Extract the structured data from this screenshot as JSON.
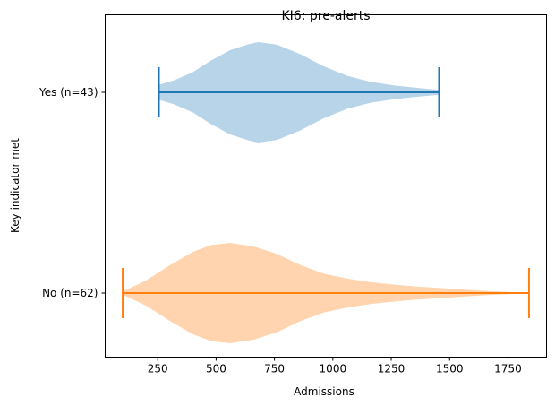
{
  "chart_data": {
    "type": "violin",
    "orientation": "horizontal",
    "title": "KI6: pre-alerts",
    "xlabel": "Admissions",
    "ylabel": "Key indicator met",
    "xlim": [
      25,
      1915
    ],
    "xticks": [
      250,
      500,
      750,
      1000,
      1250,
      1500,
      1750
    ],
    "categories": [
      "No (n=62)",
      "Yes (n=43)"
    ],
    "grid": false,
    "series": [
      {
        "category": "Yes (n=43)",
        "min": 255,
        "max": 1455,
        "fill_color": "#b8d4e8",
        "line_color": "#1f77b4",
        "density_profile": [
          [
            255,
            0.15
          ],
          [
            320,
            0.24
          ],
          [
            400,
            0.4
          ],
          [
            480,
            0.64
          ],
          [
            560,
            0.84
          ],
          [
            640,
            0.96
          ],
          [
            680,
            1.0
          ],
          [
            760,
            0.95
          ],
          [
            860,
            0.76
          ],
          [
            960,
            0.52
          ],
          [
            1060,
            0.33
          ],
          [
            1160,
            0.21
          ],
          [
            1260,
            0.14
          ],
          [
            1360,
            0.09
          ],
          [
            1455,
            0.05
          ]
        ]
      },
      {
        "category": "No (n=62)",
        "min": 100,
        "max": 1840,
        "fill_color": "#ffd4ae",
        "line_color": "#ff7f0e",
        "density_profile": [
          [
            100,
            0.03
          ],
          [
            200,
            0.25
          ],
          [
            300,
            0.55
          ],
          [
            400,
            0.82
          ],
          [
            480,
            0.96
          ],
          [
            560,
            1.0
          ],
          [
            660,
            0.93
          ],
          [
            760,
            0.78
          ],
          [
            860,
            0.56
          ],
          [
            960,
            0.39
          ],
          [
            1060,
            0.29
          ],
          [
            1160,
            0.22
          ],
          [
            1260,
            0.17
          ],
          [
            1360,
            0.13
          ],
          [
            1460,
            0.1
          ],
          [
            1560,
            0.07
          ],
          [
            1660,
            0.04
          ],
          [
            1760,
            0.02
          ],
          [
            1840,
            0.01
          ]
        ]
      }
    ]
  }
}
